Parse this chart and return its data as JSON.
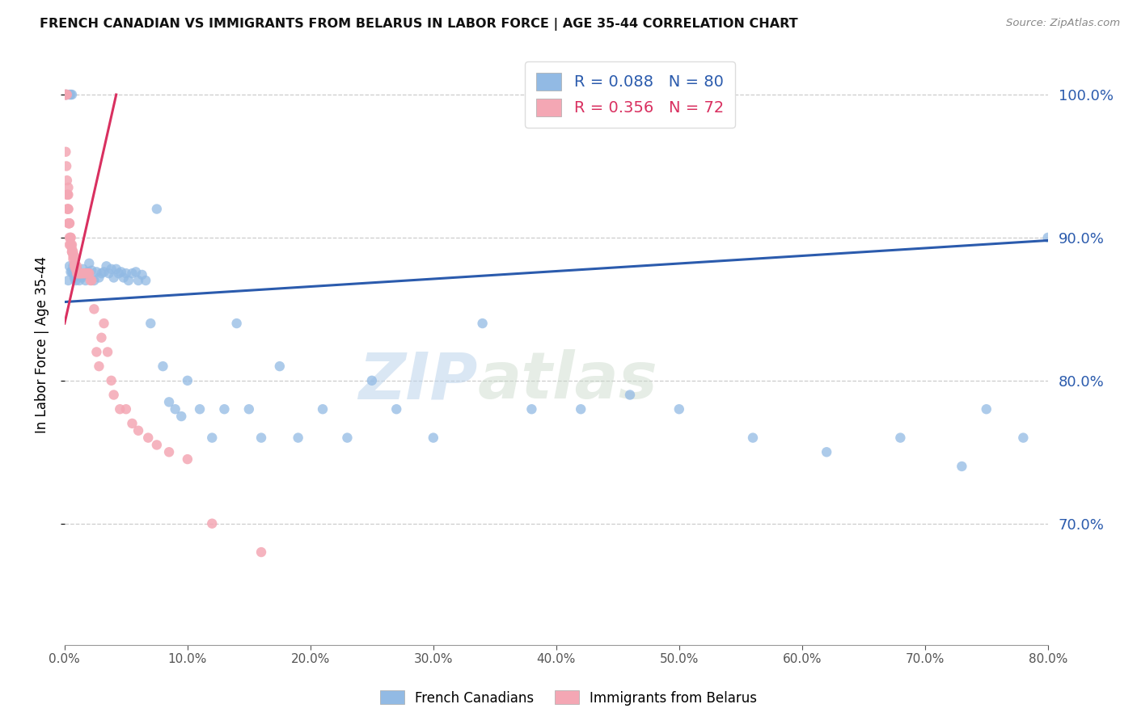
{
  "title": "FRENCH CANADIAN VS IMMIGRANTS FROM BELARUS IN LABOR FORCE | AGE 35-44 CORRELATION CHART",
  "source": "Source: ZipAtlas.com",
  "ylabel": "In Labor Force | Age 35-44",
  "xlim": [
    0.0,
    0.8
  ],
  "ylim": [
    0.615,
    1.035
  ],
  "yticks": [
    0.7,
    0.8,
    0.9,
    1.0
  ],
  "xticks": [
    0.0,
    0.1,
    0.2,
    0.3,
    0.4,
    0.5,
    0.6,
    0.7,
    0.8
  ],
  "blue_R": 0.088,
  "blue_N": 80,
  "pink_R": 0.356,
  "pink_N": 72,
  "blue_color": "#92BAE4",
  "pink_color": "#F4A7B4",
  "trend_blue": "#2B5BAD",
  "trend_pink": "#D93060",
  "legend_label_blue": "French Canadians",
  "legend_label_pink": "Immigrants from Belarus",
  "watermark_zip": "ZIP",
  "watermark_atlas": "atlas",
  "blue_scatter_x": [
    0.001,
    0.002,
    0.003,
    0.004,
    0.004,
    0.005,
    0.005,
    0.006,
    0.006,
    0.007,
    0.007,
    0.008,
    0.008,
    0.009,
    0.009,
    0.01,
    0.01,
    0.011,
    0.012,
    0.013,
    0.014,
    0.015,
    0.016,
    0.017,
    0.018,
    0.019,
    0.02,
    0.022,
    0.024,
    0.026,
    0.028,
    0.03,
    0.032,
    0.034,
    0.036,
    0.038,
    0.04,
    0.042,
    0.044,
    0.046,
    0.048,
    0.05,
    0.052,
    0.055,
    0.058,
    0.06,
    0.063,
    0.066,
    0.07,
    0.075,
    0.08,
    0.085,
    0.09,
    0.095,
    0.1,
    0.11,
    0.12,
    0.13,
    0.14,
    0.15,
    0.16,
    0.175,
    0.19,
    0.21,
    0.23,
    0.25,
    0.27,
    0.3,
    0.34,
    0.38,
    0.42,
    0.46,
    0.5,
    0.56,
    0.62,
    0.68,
    0.73,
    0.75,
    0.78,
    0.8
  ],
  "blue_scatter_y": [
    1.0,
    1.0,
    0.87,
    0.88,
    1.0,
    0.876,
    1.0,
    0.876,
    1.0,
    0.875,
    0.88,
    0.872,
    0.878,
    0.876,
    0.87,
    0.875,
    0.878,
    0.874,
    0.87,
    0.875,
    0.872,
    0.878,
    0.874,
    0.87,
    0.875,
    0.876,
    0.882,
    0.877,
    0.87,
    0.876,
    0.872,
    0.875,
    0.876,
    0.88,
    0.875,
    0.878,
    0.872,
    0.878,
    0.875,
    0.876,
    0.872,
    0.875,
    0.87,
    0.875,
    0.876,
    0.87,
    0.874,
    0.87,
    0.84,
    0.92,
    0.81,
    0.785,
    0.78,
    0.775,
    0.8,
    0.78,
    0.76,
    0.78,
    0.84,
    0.78,
    0.76,
    0.81,
    0.76,
    0.78,
    0.76,
    0.8,
    0.78,
    0.76,
    0.84,
    0.78,
    0.78,
    0.79,
    0.78,
    0.76,
    0.75,
    0.76,
    0.74,
    0.78,
    0.76,
    0.9
  ],
  "pink_scatter_x": [
    0.0005,
    0.0008,
    0.001,
    0.001,
    0.001,
    0.0012,
    0.0015,
    0.002,
    0.002,
    0.002,
    0.002,
    0.0025,
    0.003,
    0.003,
    0.003,
    0.003,
    0.003,
    0.0035,
    0.004,
    0.004,
    0.004,
    0.004,
    0.005,
    0.005,
    0.005,
    0.005,
    0.006,
    0.006,
    0.006,
    0.006,
    0.007,
    0.007,
    0.007,
    0.008,
    0.008,
    0.008,
    0.009,
    0.009,
    0.01,
    0.01,
    0.011,
    0.011,
    0.012,
    0.013,
    0.013,
    0.014,
    0.015,
    0.016,
    0.017,
    0.018,
    0.019,
    0.02,
    0.021,
    0.022,
    0.024,
    0.026,
    0.028,
    0.03,
    0.032,
    0.035,
    0.038,
    0.04,
    0.045,
    0.05,
    0.055,
    0.06,
    0.068,
    0.075,
    0.085,
    0.1,
    0.12,
    0.16
  ],
  "pink_scatter_y": [
    1.0,
    1.0,
    1.0,
    1.0,
    0.96,
    1.0,
    0.95,
    0.94,
    0.93,
    0.92,
    1.0,
    0.93,
    0.92,
    0.93,
    0.92,
    0.935,
    0.91,
    0.91,
    0.91,
    0.91,
    0.9,
    0.895,
    0.9,
    0.895,
    0.895,
    0.9,
    0.895,
    0.89,
    0.89,
    0.892,
    0.89,
    0.887,
    0.885,
    0.887,
    0.882,
    0.88,
    0.88,
    0.878,
    0.88,
    0.875,
    0.875,
    0.875,
    0.875,
    0.875,
    0.875,
    0.875,
    0.875,
    0.875,
    0.875,
    0.875,
    0.875,
    0.875,
    0.87,
    0.87,
    0.85,
    0.82,
    0.81,
    0.83,
    0.84,
    0.82,
    0.8,
    0.79,
    0.78,
    0.78,
    0.77,
    0.765,
    0.76,
    0.755,
    0.75,
    0.745,
    0.7,
    0.68
  ],
  "blue_trend_x": [
    0.0,
    0.8
  ],
  "blue_trend_y": [
    0.855,
    0.898
  ],
  "pink_trend_x": [
    0.0,
    0.042
  ],
  "pink_trend_y": [
    0.84,
    1.0
  ]
}
